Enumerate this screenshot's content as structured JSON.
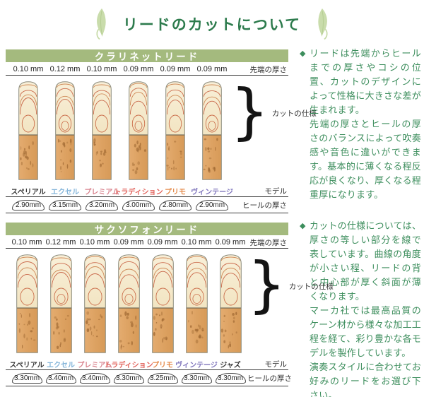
{
  "page": {
    "title": "リードのカットについて"
  },
  "row_labels": {
    "tip": "先端の厚さ",
    "cut": "カットの仕様",
    "model": "モデル",
    "heel": "ヒールの厚さ",
    "brace": "}"
  },
  "colors": {
    "band_green": "#a4ba7e",
    "title_green": "#2d7b4d",
    "text_green": "#3d8e5d",
    "leaf_green": "#c9dcab"
  },
  "sections": [
    {
      "title": "クラリネットリード",
      "reeds": [
        {
          "tip": "0.10 mm",
          "model": "スペリアル",
          "model_color": "#3a3a3a",
          "heel": "2.90mm"
        },
        {
          "tip": "0.12 mm",
          "model": "エクセル",
          "model_color": "#84b5da",
          "heel": "3.15mm"
        },
        {
          "tip": "0.10 mm",
          "model": "プレミアム",
          "model_color": "#d9848f",
          "heel": "3.20mm"
        },
        {
          "tip": "0.09 mm",
          "model": "トラディション",
          "model_color": "#e2635c",
          "heel": "3.00mm"
        },
        {
          "tip": "0.09 mm",
          "model": "プリモ",
          "model_color": "#e58c4d",
          "heel": "2.80mm"
        },
        {
          "tip": "0.09 mm",
          "model": "ヴィンテージ",
          "model_color": "#8177bd",
          "heel": "2.90mm"
        }
      ]
    },
    {
      "title": "サクソフォンリード",
      "reeds": [
        {
          "tip": "0.10 mm",
          "model": "スペリアル",
          "model_color": "#3a3a3a",
          "heel": "3.30mm"
        },
        {
          "tip": "0.12 mm",
          "model": "エクセル",
          "model_color": "#84b5da",
          "heel": "3.40mm"
        },
        {
          "tip": "0.10 mm",
          "model": "プレミアム",
          "model_color": "#d9848f",
          "heel": "3.40mm"
        },
        {
          "tip": "0.09 mm",
          "model": "トラディション",
          "model_color": "#e2635c",
          "heel": "3.30mm"
        },
        {
          "tip": "0.09 mm",
          "model": "プリモ",
          "model_color": "#e58c4d",
          "heel": "3.25mm"
        },
        {
          "tip": "0.10 mm",
          "model": "ヴィンテージ",
          "model_color": "#8177bd",
          "heel": "3.30mm"
        },
        {
          "tip": "0.09 mm",
          "model": "ジャズ",
          "model_color": "#3a3a3a",
          "heel": "3.30mm"
        }
      ]
    }
  ],
  "paragraphs": [
    {
      "bullet": "◆",
      "blocks": [
        "リードは先端からヒールまでの厚さやコシの位置、カットのデザインによって性格に大きさな差が生まれます。",
        "先端の厚さとヒールの厚さのバランスによって吹奏感や音色に違いができます。基本的に薄くなる程反応が良くなり、厚くなる程重厚になります。"
      ]
    },
    {
      "bullet": "◆",
      "blocks": [
        "カットの仕様については、厚さの等しい部分を線で表しています。曲線の角度が小さい程、リードの背と中心部が厚く斜面が薄くなります。",
        "マーカ社では最高品質のケーン材から様々な加工工程を経て、彩り豊かな各モデルを製作しています。",
        "演奏スタイルに合わせてお好みのリードをお選び下さい。"
      ]
    }
  ]
}
